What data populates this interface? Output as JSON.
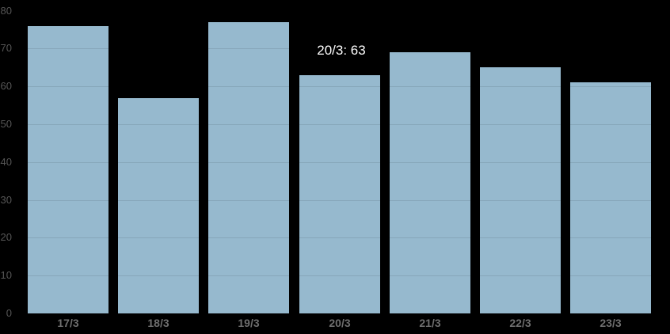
{
  "chart_data": {
    "type": "bar",
    "title": "",
    "xlabel": "",
    "ylabel": "",
    "categories": [
      "17/3",
      "18/3",
      "19/3",
      "20/3",
      "21/3",
      "22/3",
      "23/3"
    ],
    "values": [
      76,
      57,
      77,
      63,
      69,
      65,
      61
    ],
    "ylim": [
      0,
      80
    ],
    "yticks": [
      0,
      10,
      20,
      30,
      40,
      50,
      60,
      70,
      80
    ],
    "grid": true,
    "legend": false,
    "tooltip": {
      "category": "20/3",
      "value": 63,
      "label": "20/3: 63",
      "anchor_index": 3
    },
    "colors": {
      "background": "#000000",
      "bar": "#96b9ce",
      "grid_over_bar": "rgba(0,0,0,0.10)",
      "y_axis_label": "#565656",
      "x_axis_label": "#6f6f6f",
      "tooltip_text": "#ffffff"
    }
  }
}
